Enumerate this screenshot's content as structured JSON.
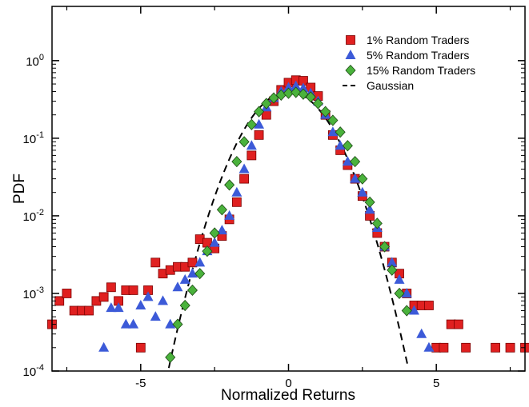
{
  "chart_data": {
    "type": "scatter",
    "title": "",
    "xlabel": "Normalized Returns",
    "ylabel": "PDF",
    "xlim": [
      -8,
      8
    ],
    "ylim": [
      0.0001,
      5
    ],
    "yscale": "log",
    "grid": false,
    "legend": "top-right",
    "x_ticks": [
      {
        "value": -5,
        "label": "-5"
      },
      {
        "value": 0,
        "label": "0"
      },
      {
        "value": 5,
        "label": "5"
      }
    ],
    "y_ticks": [
      {
        "value": 1,
        "base": "10",
        "exp": "0"
      },
      {
        "value": 0.1,
        "base": "10",
        "exp": "-1"
      },
      {
        "value": 0.01,
        "base": "10",
        "exp": "-2"
      },
      {
        "value": 0.001,
        "base": "10",
        "exp": "-3"
      },
      {
        "value": 0.0001,
        "base": "10",
        "exp": "-4"
      }
    ],
    "series": [
      {
        "name": "1% Random Traders",
        "marker": "square",
        "color": "#e02020",
        "points": [
          [
            -8.0,
            0.0004
          ],
          [
            -7.75,
            0.0008
          ],
          [
            -7.5,
            0.001
          ],
          [
            -7.25,
            0.0006
          ],
          [
            -7.0,
            0.0006
          ],
          [
            -6.75,
            0.0006
          ],
          [
            -6.5,
            0.0008
          ],
          [
            -6.25,
            0.0009
          ],
          [
            -6.0,
            0.0012
          ],
          [
            -5.75,
            0.0008
          ],
          [
            -5.5,
            0.0011
          ],
          [
            -5.25,
            0.0011
          ],
          [
            -5.0,
            0.0002
          ],
          [
            -4.75,
            0.0011
          ],
          [
            -4.5,
            0.0025
          ],
          [
            -4.25,
            0.0018
          ],
          [
            -4.0,
            0.002
          ],
          [
            -3.75,
            0.0022
          ],
          [
            -3.5,
            0.0022
          ],
          [
            -3.25,
            0.0025
          ],
          [
            -3.0,
            0.005
          ],
          [
            -2.75,
            0.0045
          ],
          [
            -2.5,
            0.0038
          ],
          [
            -2.25,
            0.0055
          ],
          [
            -2.0,
            0.009
          ],
          [
            -1.75,
            0.015
          ],
          [
            -1.5,
            0.03
          ],
          [
            -1.25,
            0.06
          ],
          [
            -1.0,
            0.11
          ],
          [
            -0.75,
            0.2
          ],
          [
            -0.5,
            0.3
          ],
          [
            -0.25,
            0.42
          ],
          [
            0.0,
            0.52
          ],
          [
            0.25,
            0.56
          ],
          [
            0.5,
            0.55
          ],
          [
            0.75,
            0.45
          ],
          [
            1.0,
            0.35
          ],
          [
            1.25,
            0.2
          ],
          [
            1.5,
            0.11
          ],
          [
            1.75,
            0.07
          ],
          [
            2.0,
            0.045
          ],
          [
            2.25,
            0.03
          ],
          [
            2.5,
            0.018
          ],
          [
            2.75,
            0.01
          ],
          [
            3.0,
            0.006
          ],
          [
            3.25,
            0.004
          ],
          [
            3.5,
            0.0025
          ],
          [
            3.75,
            0.0018
          ],
          [
            4.0,
            0.001
          ],
          [
            4.25,
            0.0007
          ],
          [
            4.5,
            0.0007
          ],
          [
            4.75,
            0.0007
          ],
          [
            5.0,
            0.0002
          ],
          [
            5.25,
            0.0002
          ],
          [
            5.5,
            0.0004
          ],
          [
            5.75,
            0.0004
          ],
          [
            6.0,
            0.0002
          ],
          [
            7.0,
            0.0002
          ],
          [
            7.5,
            0.0002
          ],
          [
            8.0,
            0.0002
          ]
        ]
      },
      {
        "name": "5% Random Traders",
        "marker": "triangle",
        "color": "#3c5ad8",
        "points": [
          [
            -6.25,
            0.0002
          ],
          [
            -6.0,
            0.00065
          ],
          [
            -5.75,
            0.00065
          ],
          [
            -5.5,
            0.0004
          ],
          [
            -5.25,
            0.0004
          ],
          [
            -5.0,
            0.0007
          ],
          [
            -4.75,
            0.0009
          ],
          [
            -4.5,
            0.0005
          ],
          [
            -4.25,
            0.0008
          ],
          [
            -4.0,
            0.0004
          ],
          [
            -3.75,
            0.0012
          ],
          [
            -3.5,
            0.0015
          ],
          [
            -3.25,
            0.0018
          ],
          [
            -3.0,
            0.0025
          ],
          [
            -2.75,
            0.0035
          ],
          [
            -2.5,
            0.0045
          ],
          [
            -2.25,
            0.0065
          ],
          [
            -2.0,
            0.01
          ],
          [
            -1.75,
            0.02
          ],
          [
            -1.5,
            0.04
          ],
          [
            -1.25,
            0.08
          ],
          [
            -1.0,
            0.15
          ],
          [
            -0.75,
            0.25
          ],
          [
            -0.5,
            0.33
          ],
          [
            -0.25,
            0.4
          ],
          [
            0.0,
            0.45
          ],
          [
            0.25,
            0.47
          ],
          [
            0.5,
            0.44
          ],
          [
            0.75,
            0.38
          ],
          [
            1.0,
            0.3
          ],
          [
            1.25,
            0.2
          ],
          [
            1.5,
            0.12
          ],
          [
            1.75,
            0.08
          ],
          [
            2.0,
            0.05
          ],
          [
            2.25,
            0.03
          ],
          [
            2.5,
            0.02
          ],
          [
            2.75,
            0.012
          ],
          [
            3.0,
            0.007
          ],
          [
            3.25,
            0.004
          ],
          [
            3.5,
            0.0025
          ],
          [
            3.75,
            0.0015
          ],
          [
            4.0,
            0.001
          ],
          [
            4.25,
            0.0006
          ],
          [
            4.5,
            0.0003
          ],
          [
            4.75,
            0.0002
          ]
        ]
      },
      {
        "name": "15% Random Traders",
        "marker": "diamond",
        "color": "#4ab23c",
        "points": [
          [
            -4.0,
            0.00015
          ],
          [
            -3.75,
            0.0004
          ],
          [
            -3.5,
            0.0007
          ],
          [
            -3.25,
            0.0011
          ],
          [
            -3.0,
            0.0018
          ],
          [
            -2.75,
            0.0035
          ],
          [
            -2.5,
            0.006
          ],
          [
            -2.25,
            0.012
          ],
          [
            -2.0,
            0.025
          ],
          [
            -1.75,
            0.05
          ],
          [
            -1.5,
            0.09
          ],
          [
            -1.25,
            0.15
          ],
          [
            -1.0,
            0.22
          ],
          [
            -0.75,
            0.28
          ],
          [
            -0.5,
            0.33
          ],
          [
            -0.25,
            0.36
          ],
          [
            0.0,
            0.38
          ],
          [
            0.25,
            0.39
          ],
          [
            0.5,
            0.37
          ],
          [
            0.75,
            0.34
          ],
          [
            1.0,
            0.28
          ],
          [
            1.25,
            0.22
          ],
          [
            1.5,
            0.17
          ],
          [
            1.75,
            0.12
          ],
          [
            2.0,
            0.08
          ],
          [
            2.25,
            0.05
          ],
          [
            2.5,
            0.03
          ],
          [
            2.75,
            0.015
          ],
          [
            3.0,
            0.008
          ],
          [
            3.25,
            0.004
          ],
          [
            3.5,
            0.002
          ],
          [
            3.75,
            0.001
          ],
          [
            4.0,
            0.0006
          ]
        ]
      },
      {
        "name": "Gaussian",
        "marker": "dashed-line",
        "color": "#000000",
        "function": "standard normal density exp(-x^2/2)/sqrt(2*pi)"
      }
    ]
  }
}
